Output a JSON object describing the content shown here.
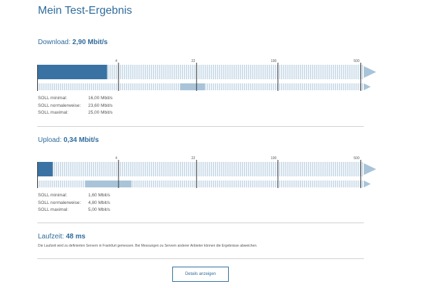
{
  "page": {
    "title": "Mein Test-Ergebnis"
  },
  "colors": {
    "accent": "#2f6b9b",
    "bar_dark": "#3a73a3",
    "bar_light": "#a9c4d8",
    "stripe": "#c4d7e6"
  },
  "ticks": [
    "4",
    "22",
    "100",
    "500"
  ],
  "download": {
    "label": "Download:",
    "value": "2,90 Mbit/s",
    "measured_fraction": 0.215,
    "soll_range_fraction": [
      0.44,
      0.515
    ],
    "soll": [
      {
        "label": "SOLL minimal:",
        "value": "16,00 Mbit/s"
      },
      {
        "label": "SOLL normalerweise:",
        "value": "23,60 Mbit/s"
      },
      {
        "label": "SOLL maximal:",
        "value": "25,00 Mbit/s"
      }
    ]
  },
  "upload": {
    "label": "Upload:",
    "value": "0,34 Mbit/s",
    "measured_fraction": 0.048,
    "soll_range_fraction": [
      0.148,
      0.29
    ],
    "soll": [
      {
        "label": "SOLL minimal:",
        "value": "1,60 Mbit/s"
      },
      {
        "label": "SOLL normalerweise:",
        "value": "4,80 Mbit/s"
      },
      {
        "label": "SOLL maximal:",
        "value": "5,00 Mbit/s"
      }
    ]
  },
  "latency": {
    "label": "Laufzeit:",
    "value": "48 ms",
    "note": "Die Laufzeit wird zu definierten Servern in Frankfurt gemessen. Bei Messungen zu Servern anderer Anbieter können die Ergebnisse abweichen."
  },
  "details_button": "Details anzeigen"
}
